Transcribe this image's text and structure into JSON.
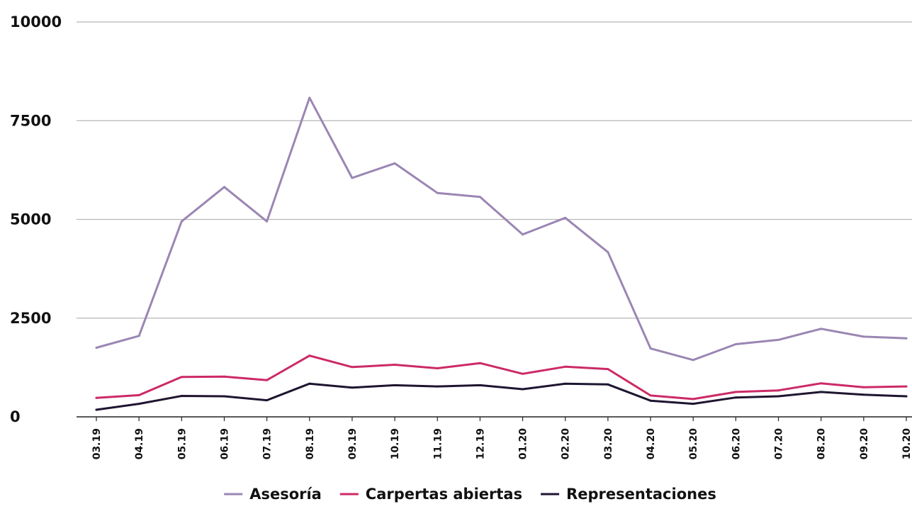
{
  "chart_data": {
    "type": "line",
    "title": "",
    "xlabel": "",
    "ylabel": "",
    "ylim": [
      0,
      10000
    ],
    "yticks": [
      "0",
      "2500",
      "5000",
      "7500",
      "10000"
    ],
    "categories": [
      "03.19",
      "04.19",
      "05.19",
      "06.19",
      "07.19",
      "08.19",
      "09.19",
      "10.19",
      "11.19",
      "12.19",
      "01.20",
      "02.20",
      "03.20",
      "04.20",
      "05.20",
      "06.20",
      "07.20",
      "08.20",
      "09.20",
      "10.20"
    ],
    "grid": "horizontal",
    "legend_position": "bottom-center",
    "series": [
      {
        "name": "Asesoría",
        "color": "#9b86b3",
        "values": [
          1750,
          2050,
          4950,
          5820,
          4950,
          8080,
          6050,
          6420,
          5670,
          5570,
          4620,
          5040,
          4170,
          1730,
          1440,
          1840,
          1950,
          2230,
          2030,
          1990
        ]
      },
      {
        "name": "Carpertas abiertas",
        "color": "#cc2a66",
        "values": [
          480,
          550,
          1010,
          1020,
          930,
          1550,
          1260,
          1320,
          1230,
          1360,
          1090,
          1270,
          1210,
          540,
          450,
          630,
          670,
          850,
          750,
          770
        ]
      },
      {
        "name": "Representaciones",
        "color": "#1e1530",
        "values": [
          180,
          330,
          530,
          520,
          420,
          840,
          740,
          800,
          770,
          800,
          700,
          840,
          820,
          410,
          330,
          490,
          520,
          630,
          560,
          520
        ]
      }
    ]
  }
}
